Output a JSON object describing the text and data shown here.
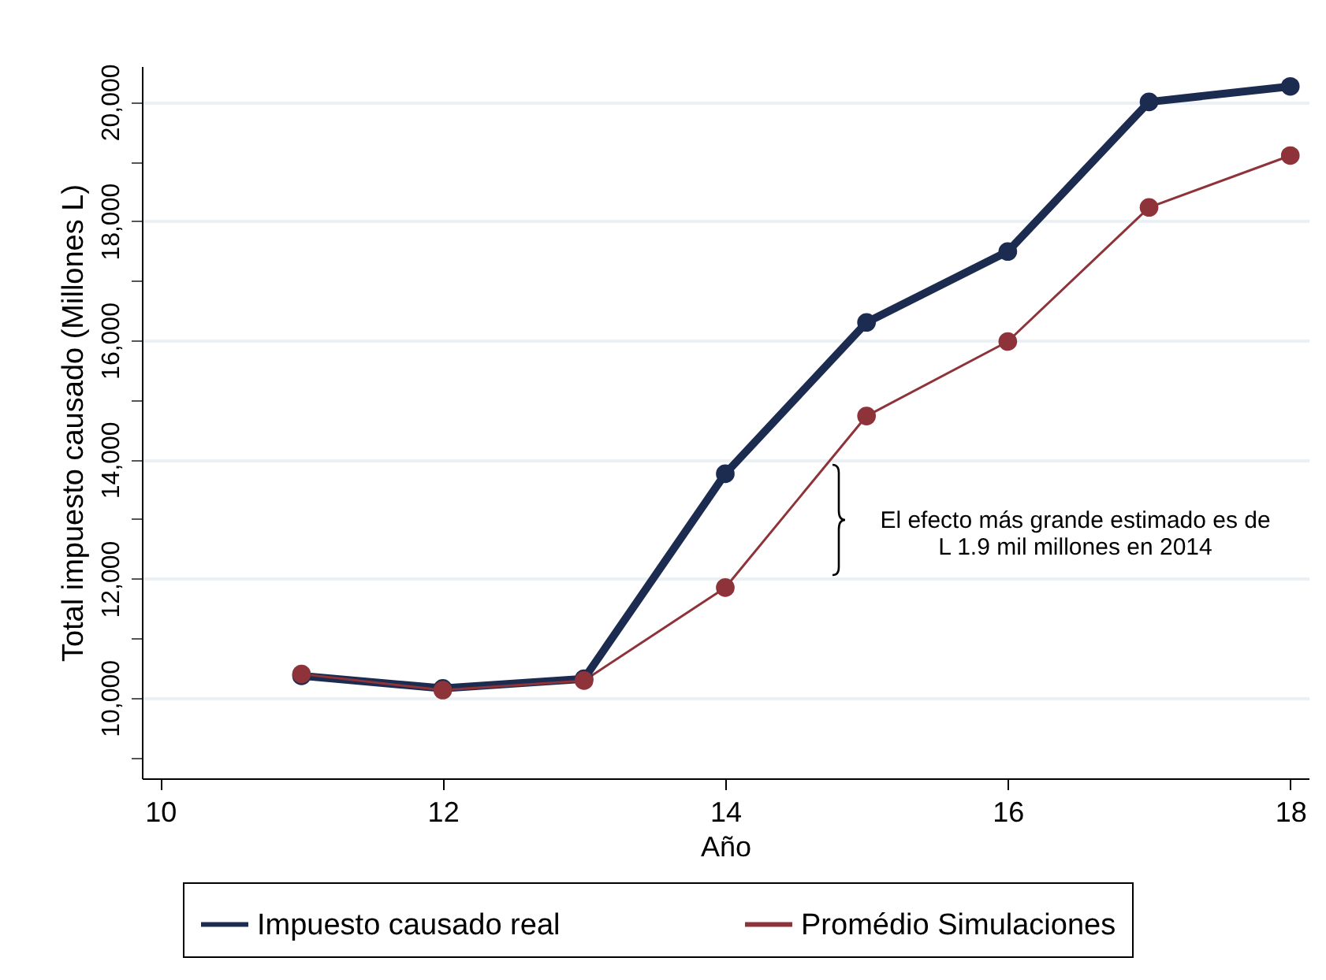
{
  "chart_data": {
    "type": "line",
    "xlabel": "Año",
    "ylabel": "Total impuesto causado (Millones L)",
    "x": [
      11,
      12,
      13,
      14,
      15,
      16,
      17,
      18
    ],
    "series": [
      {
        "name": "Impuesto causado real",
        "color": "#1c2b50",
        "values": [
          10370,
          10160,
          10320,
          13760,
          16300,
          17490,
          20000,
          20260
        ]
      },
      {
        "name": "Promédio Simulaciones",
        "color": "#8e3339",
        "values": [
          10400,
          10130,
          10290,
          11850,
          14730,
          15980,
          18230,
          19100
        ]
      }
    ],
    "xlim": [
      9.87,
      18.13
    ],
    "xticks": [
      10,
      12,
      14,
      16,
      18
    ],
    "ylim": [
      8650,
      20600
    ],
    "yticks": [
      {
        "value": 9000,
        "label": null
      },
      {
        "value": 10000,
        "label": "10,000"
      },
      {
        "value": 11000,
        "label": null
      },
      {
        "value": 12000,
        "label": "12,000"
      },
      {
        "value": 13000,
        "label": null
      },
      {
        "value": 14000,
        "label": "14,000"
      },
      {
        "value": 15000,
        "label": null
      },
      {
        "value": 16000,
        "label": "16,000"
      },
      {
        "value": 17000,
        "label": null
      },
      {
        "value": 18000,
        "label": "18,000"
      },
      {
        "value": 19000,
        "label": null
      },
      {
        "value": 20000,
        "label": "20,000"
      }
    ],
    "annotations": [
      "El efecto más grande estimado es de\nL 1.9 mil millones en 2014"
    ],
    "grid": "y",
    "legend": "bottom",
    "marker": "circle",
    "line_style": "solid"
  }
}
